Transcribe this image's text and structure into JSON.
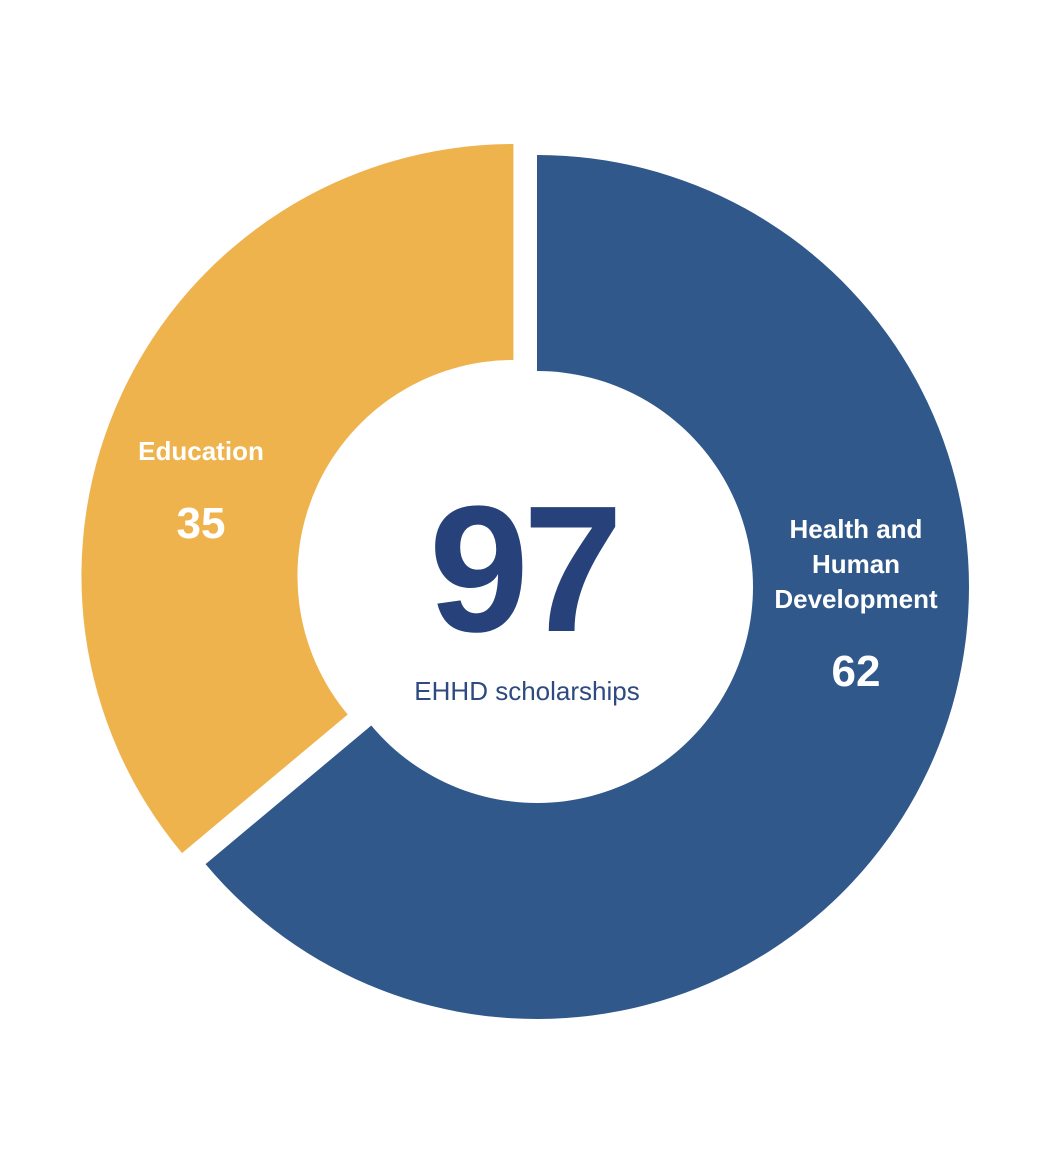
{
  "chart_data": {
    "type": "pie",
    "donut": true,
    "categories": [
      "Health and Human Development",
      "Education"
    ],
    "values": [
      62,
      35
    ],
    "colors": [
      "#30588b",
      "#efb34e"
    ],
    "center_value": 97,
    "center_label": "EHHD scholarships"
  }
}
